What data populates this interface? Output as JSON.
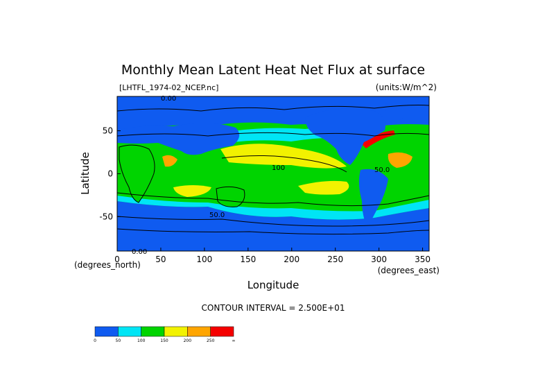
{
  "chart_data": {
    "type": "heatmap",
    "title": "Monthly Mean Latent Heat Net Flux at surface",
    "subtitle_left": "[LHTFL_1974-02_NCEP.nc]",
    "subtitle_right": "(units:W/m^2)",
    "xlabel": "Longitude",
    "ylabel": "Latitude",
    "x_unit_label": "(degrees_east)",
    "y_unit_label": "(degrees_north)",
    "xlim": [
      0,
      357.5
    ],
    "ylim": [
      -90,
      90
    ],
    "x_ticks": [
      0,
      50,
      100,
      150,
      200,
      250,
      300,
      350
    ],
    "y_ticks": [
      50,
      0,
      -50
    ],
    "contour_interval_label": "CONTOUR INTERVAL = 2.500E+01",
    "contour_labels": [
      "0.00",
      "0.00",
      "50.0",
      "50.0",
      "100"
    ],
    "colorbar": {
      "bins": [
        {
          "from": 0,
          "to": 50,
          "color": "#0f5bf0"
        },
        {
          "from": 50,
          "to": 100,
          "color": "#00e5f5"
        },
        {
          "from": 100,
          "to": 150,
          "color": "#00d400"
        },
        {
          "from": 150,
          "to": 200,
          "color": "#f2f200"
        },
        {
          "from": 200,
          "to": 250,
          "color": "#ffa500"
        },
        {
          "from": 250,
          "to": null,
          "color": "#f50000"
        }
      ],
      "tick_labels": [
        "0",
        "50",
        "100",
        "150",
        "200",
        "250",
        "∞"
      ]
    },
    "grid": false
  }
}
